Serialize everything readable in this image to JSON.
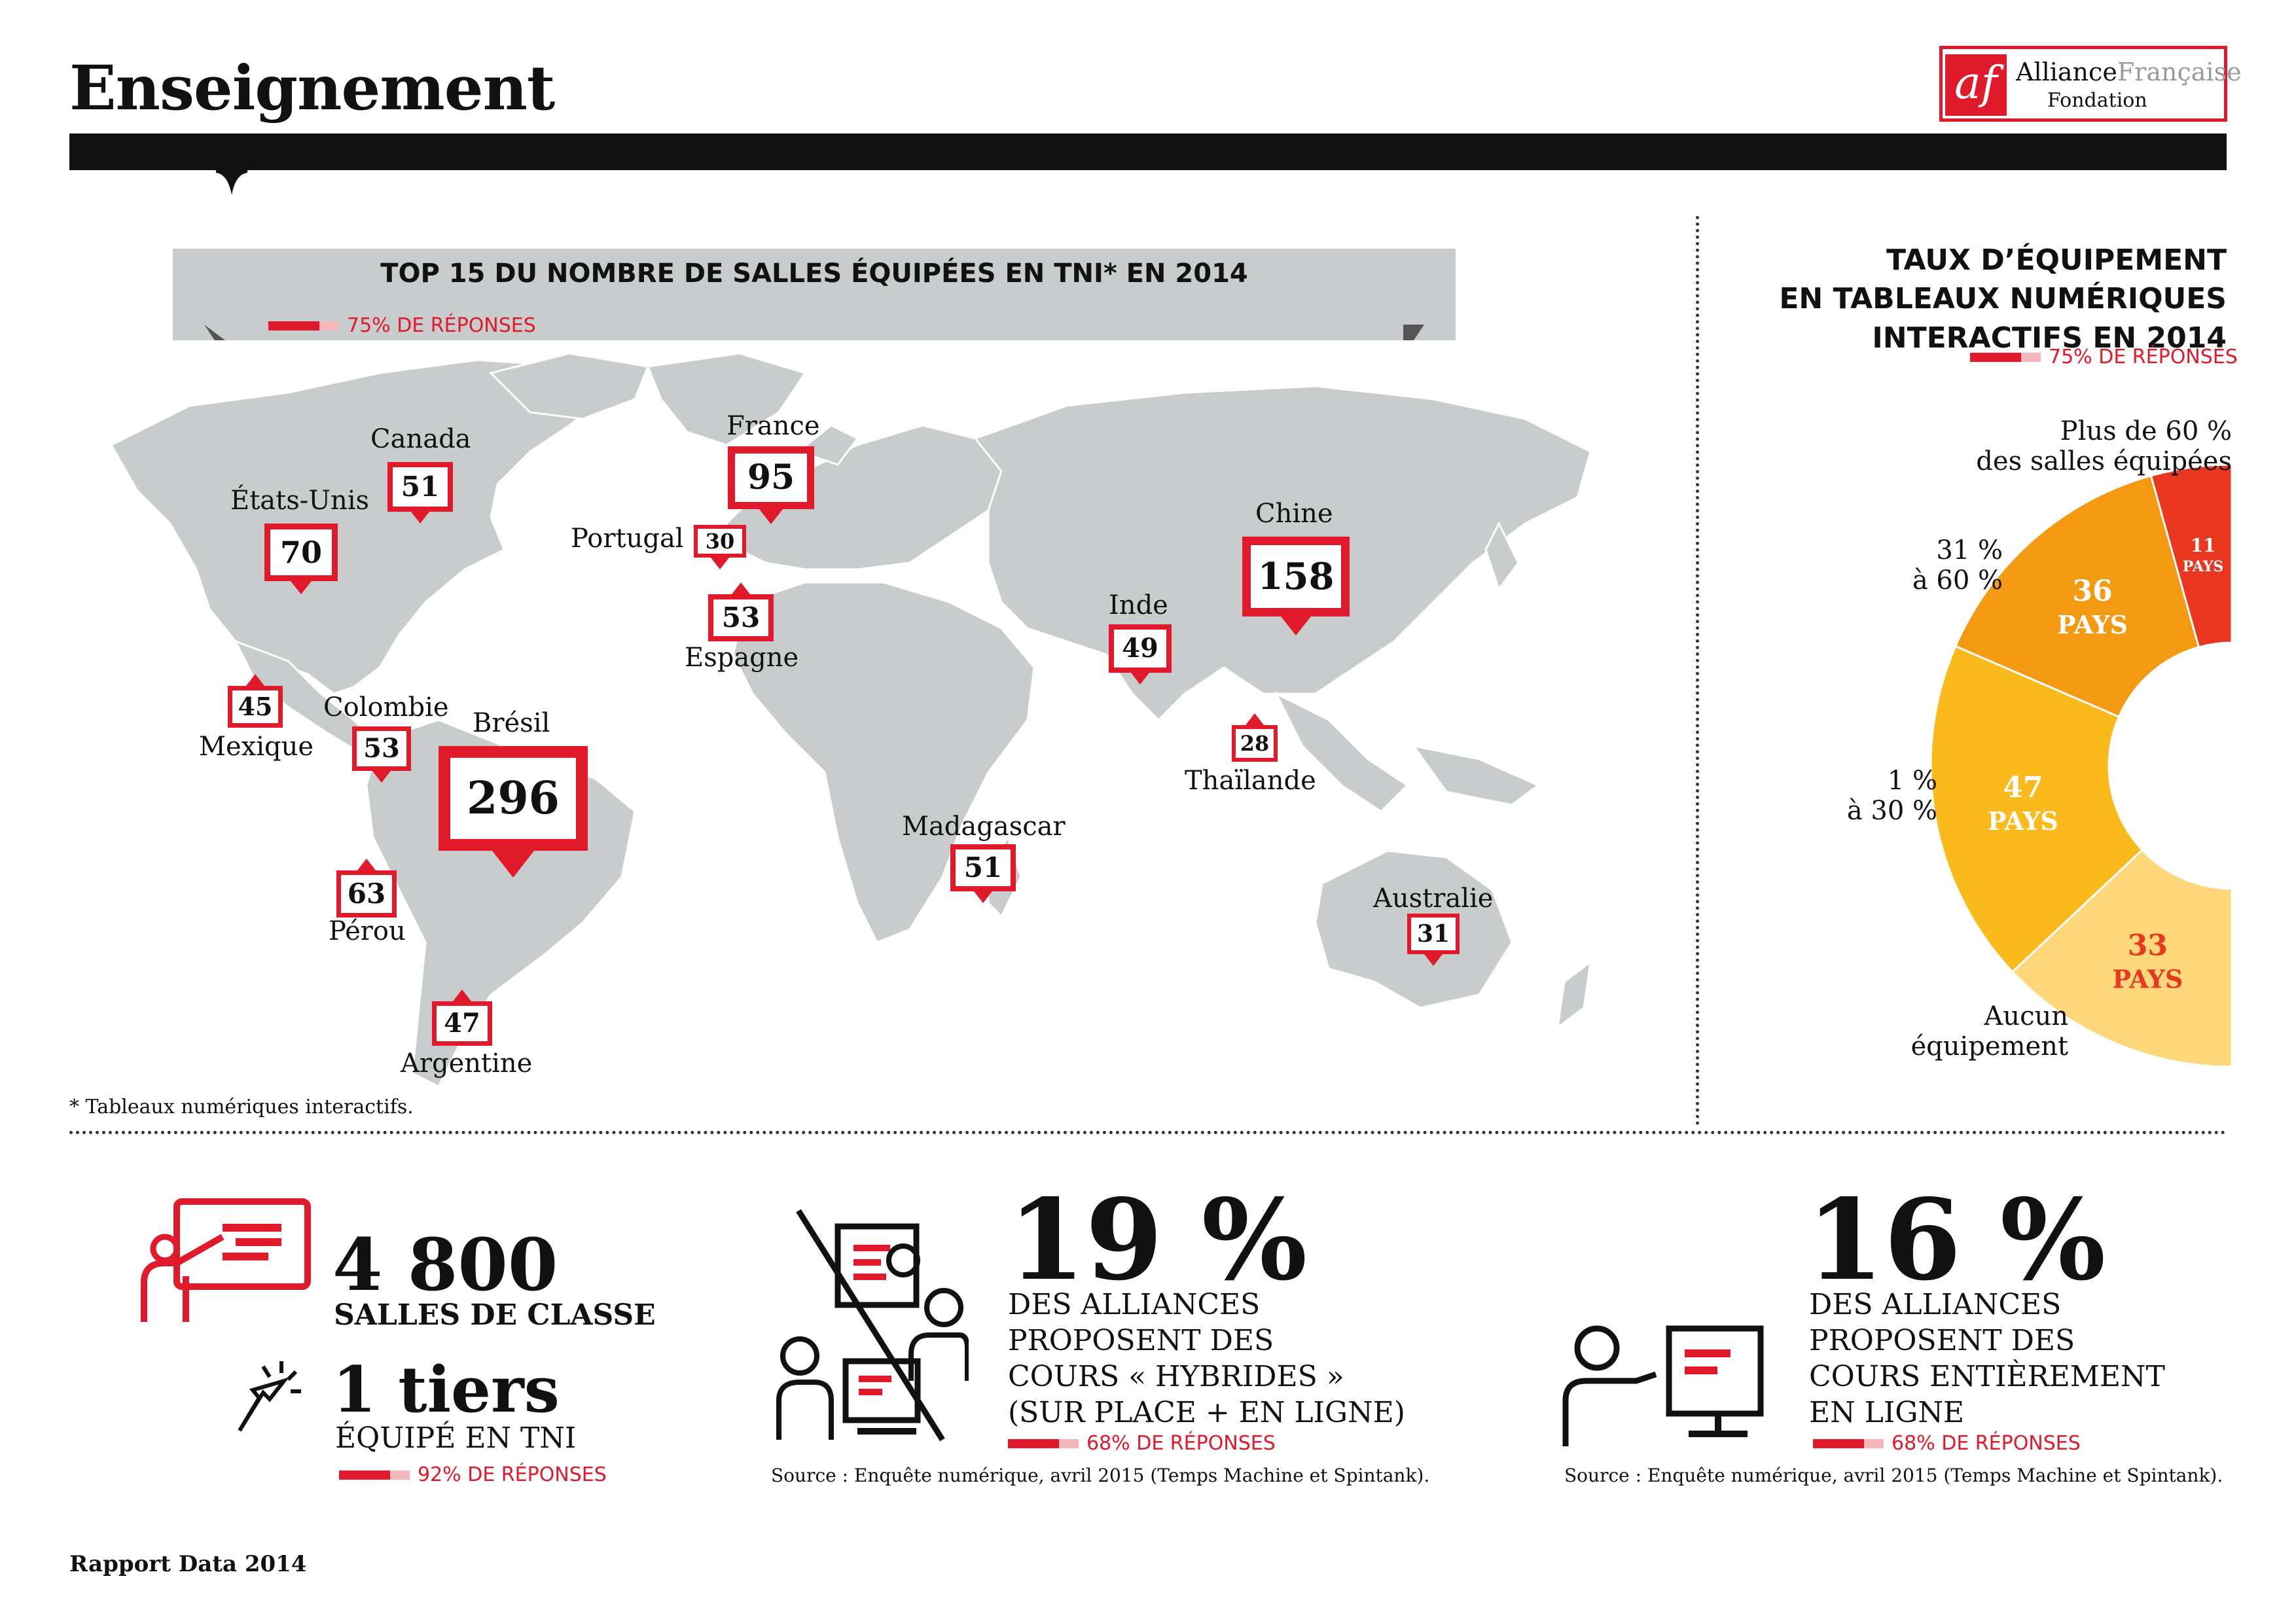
{
  "header": {
    "title": "Enseignement",
    "logo_mark": "af",
    "logo_name_1": "Alliance",
    "logo_name_2": "Française",
    "logo_sub": "Fondation"
  },
  "colors": {
    "accent": "#e01a2b",
    "map_land": "#c9cccc",
    "banner": "#c9cccc"
  },
  "map_section": {
    "title": "TOP 15 DU NOMBRE DE SALLES ÉQUIPÉES EN TNI* EN 2014",
    "responses": "75% DE RÉPONSES",
    "footnote": "* Tableaux numériques interactifs.",
    "countries": [
      {
        "name": "Canada",
        "value": "51"
      },
      {
        "name": "États-Unis",
        "value": "70"
      },
      {
        "name": "Mexique",
        "value": "45"
      },
      {
        "name": "Colombie",
        "value": "53"
      },
      {
        "name": "Brésil",
        "value": "296"
      },
      {
        "name": "Pérou",
        "value": "63"
      },
      {
        "name": "Argentine",
        "value": "47"
      },
      {
        "name": "France",
        "value": "95"
      },
      {
        "name": "Portugal",
        "value": "30"
      },
      {
        "name": "Espagne",
        "value": "53"
      },
      {
        "name": "Madagascar",
        "value": "51"
      },
      {
        "name": "Inde",
        "value": "49"
      },
      {
        "name": "Chine",
        "value": "158"
      },
      {
        "name": "Thaïlande",
        "value": "28"
      },
      {
        "name": "Australie",
        "value": "31"
      }
    ]
  },
  "donut_section": {
    "title_lines": [
      "TAUX D’ÉQUIPEMENT",
      "EN TABLEAUX NUMÉRIQUES",
      "INTERACTIFS EN 2014"
    ],
    "responses": "75% DE RÉPONSES",
    "segments": [
      {
        "label_1": "Plus de 60 %",
        "label_2": "des salles équipées",
        "value": "11",
        "unit": "PAYS",
        "color": "#e8371e"
      },
      {
        "label_1": "31 %",
        "label_2": "à 60 %",
        "value": "36",
        "unit": "PAYS",
        "color": "#f39a12"
      },
      {
        "label_1": "1 %",
        "label_2": "à 30 %",
        "value": "47",
        "unit": "PAYS",
        "color": "#fbba1c"
      },
      {
        "label_1": "Aucun",
        "label_2": "équipement",
        "value": "33",
        "unit": "PAYS",
        "color": "#fdd77a"
      }
    ]
  },
  "stats": {
    "classrooms_value": "4 800",
    "classrooms_label": "SALLES DE CLASSE",
    "equipped_value": "1 tiers",
    "equipped_label": "ÉQUIPÉ EN TNI",
    "equipped_responses": "92% DE RÉPONSES",
    "hybrid_value": "19 %",
    "hybrid_lines": [
      "DES ALLIANCES",
      "PROPOSENT DES",
      "COURS « HYBRIDES »",
      "(SUR PLACE + EN LIGNE)"
    ],
    "hybrid_responses": "68% DE RÉPONSES",
    "online_value": "16 %",
    "online_lines": [
      "DES ALLIANCES",
      "PROPOSENT DES",
      "COURS ENTIÈREMENT",
      "EN LIGNE"
    ],
    "online_responses": "68% DE RÉPONSES",
    "source": "Source : Enquête numérique, avril 2015 (Temps Machine et Spintank)."
  },
  "footer": {
    "report": "Rapport Data 2014"
  }
}
